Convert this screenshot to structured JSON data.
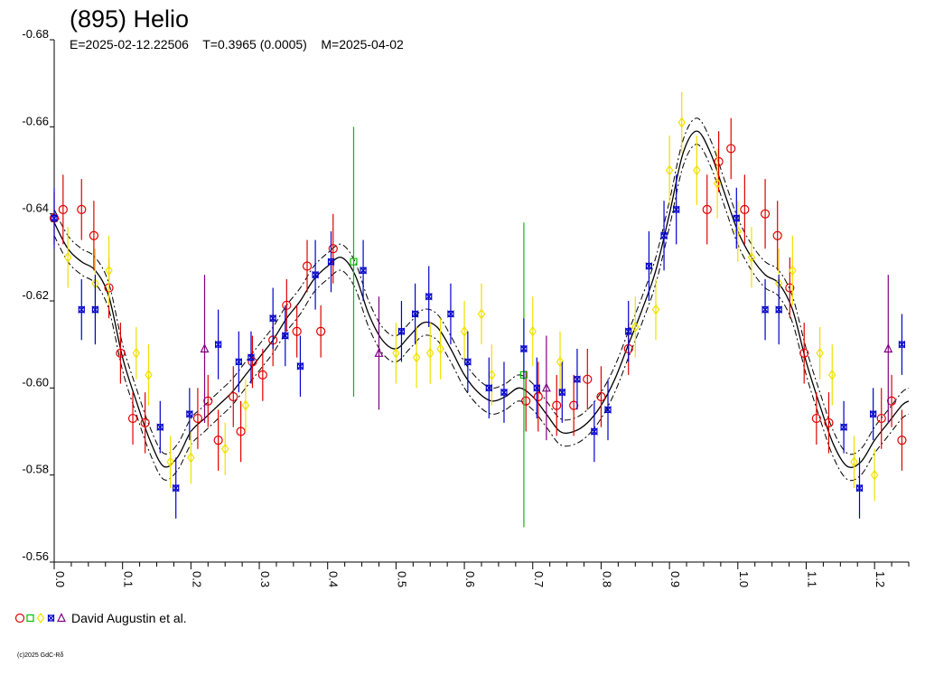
{
  "chart_data": {
    "type": "scatter",
    "title": "(895) Helio",
    "subtitle": "E=2025-02-12.22506    T=0.3965 (0.0005)    M=2025-04-02",
    "legend_label": "David Augustin et al.",
    "copyright": "(c)2025 GdC-Rδ",
    "xlim": [
      0.0,
      1.25
    ],
    "ylim": [
      -0.68,
      -0.56
    ],
    "y_ticks": [
      "-0.68",
      "-0.66",
      "-0.64",
      "-0.62",
      "-0.60",
      "-0.58",
      "-0.56"
    ],
    "y_tick_values": [
      -0.68,
      -0.66,
      -0.64,
      -0.62,
      -0.6,
      -0.58,
      -0.56
    ],
    "x_ticks": [
      "0.0",
      "0.1",
      "0.2",
      "0.3",
      "0.4",
      "0.5",
      "0.6",
      "0.7",
      "0.8",
      "0.9",
      "1.0",
      "1.1",
      "1.2"
    ],
    "x_tick_values": [
      0.0,
      0.1,
      0.2,
      0.3,
      0.4,
      0.5,
      0.6,
      0.7,
      0.8,
      0.9,
      1.0,
      1.1,
      1.2
    ],
    "model_curve": {
      "x": [
        0.0,
        0.02,
        0.04,
        0.06,
        0.08,
        0.1,
        0.12,
        0.14,
        0.16,
        0.18,
        0.2,
        0.22,
        0.24,
        0.26,
        0.28,
        0.3,
        0.32,
        0.34,
        0.36,
        0.38,
        0.4,
        0.42,
        0.44,
        0.46,
        0.48,
        0.5,
        0.52,
        0.54,
        0.56,
        0.58,
        0.6,
        0.62,
        0.64,
        0.66,
        0.68,
        0.7,
        0.72,
        0.74,
        0.76,
        0.78,
        0.8,
        0.82,
        0.84,
        0.86,
        0.88,
        0.9,
        0.92,
        0.94,
        0.96,
        0.98,
        1.0,
        1.02,
        1.04,
        1.06,
        1.08,
        1.1,
        1.12,
        1.14,
        1.16,
        1.18,
        1.2,
        1.22,
        1.24,
        1.25
      ],
      "y": [
        -0.638,
        -0.632,
        -0.629,
        -0.627,
        -0.621,
        -0.607,
        -0.597,
        -0.588,
        -0.582,
        -0.584,
        -0.59,
        -0.593,
        -0.596,
        -0.599,
        -0.603,
        -0.607,
        -0.611,
        -0.616,
        -0.62,
        -0.625,
        -0.628,
        -0.63,
        -0.626,
        -0.617,
        -0.611,
        -0.609,
        -0.612,
        -0.615,
        -0.614,
        -0.609,
        -0.603,
        -0.599,
        -0.597,
        -0.598,
        -0.6,
        -0.598,
        -0.594,
        -0.59,
        -0.59,
        -0.592,
        -0.596,
        -0.602,
        -0.61,
        -0.618,
        -0.627,
        -0.64,
        -0.654,
        -0.659,
        -0.654,
        -0.645,
        -0.636,
        -0.63,
        -0.626,
        -0.624,
        -0.618,
        -0.606,
        -0.596,
        -0.587,
        -0.582,
        -0.583,
        -0.588,
        -0.592,
        -0.596,
        -0.597
      ],
      "band": 0.003
    },
    "series": [
      {
        "marker": "circle",
        "color": "#e00000",
        "points": [
          [
            0.0,
            -0.639,
            0.006
          ],
          [
            0.013,
            -0.641,
            0.008
          ],
          [
            0.04,
            -0.641,
            0.007
          ],
          [
            0.058,
            -0.635,
            0.008
          ],
          [
            0.08,
            -0.623,
            0.007
          ],
          [
            0.097,
            -0.608,
            0.007
          ],
          [
            0.115,
            -0.593,
            0.006
          ],
          [
            0.133,
            -0.592,
            0.007
          ],
          [
            0.21,
            -0.593,
            0.007
          ],
          [
            0.225,
            -0.597,
            0.006
          ],
          [
            0.24,
            -0.588,
            0.007
          ],
          [
            0.262,
            -0.598,
            0.007
          ],
          [
            0.273,
            -0.59,
            0.007
          ],
          [
            0.29,
            -0.606,
            0.006
          ],
          [
            0.305,
            -0.603,
            0.006
          ],
          [
            0.32,
            -0.611,
            0.006
          ],
          [
            0.34,
            -0.619,
            0.006
          ],
          [
            0.355,
            -0.613,
            0.006
          ],
          [
            0.37,
            -0.628,
            0.006
          ],
          [
            0.39,
            -0.613,
            0.006
          ],
          [
            0.408,
            -0.632,
            0.008
          ],
          [
            0.69,
            -0.597,
            0.007
          ],
          [
            0.708,
            -0.598,
            0.008
          ],
          [
            0.735,
            -0.596,
            0.007
          ],
          [
            0.76,
            -0.596,
            0.007
          ],
          [
            0.78,
            -0.602,
            0.007
          ],
          [
            0.8,
            -0.598,
            0.007
          ],
          [
            0.84,
            -0.609,
            0.006
          ],
          [
            0.955,
            -0.641,
            0.008
          ],
          [
            0.972,
            -0.652,
            0.007
          ],
          [
            0.99,
            -0.655,
            0.007
          ],
          [
            1.01,
            -0.641,
            0.008
          ],
          [
            1.04,
            -0.64,
            0.008
          ],
          [
            1.058,
            -0.635,
            0.008
          ],
          [
            1.076,
            -0.623,
            0.007
          ],
          [
            1.097,
            -0.608,
            0.007
          ],
          [
            1.115,
            -0.593,
            0.006
          ],
          [
            1.133,
            -0.592,
            0.007
          ],
          [
            1.21,
            -0.593,
            0.007
          ],
          [
            1.225,
            -0.597,
            0.006
          ],
          [
            1.24,
            -0.588,
            0.007
          ]
        ]
      },
      {
        "marker": "square",
        "color": "#00c000",
        "points": [
          [
            0.438,
            -0.629,
            0.031
          ],
          [
            0.687,
            -0.603,
            0.035
          ]
        ]
      },
      {
        "marker": "diamond",
        "color": "#f0e000",
        "points": [
          [
            0.02,
            -0.63,
            0.007
          ],
          [
            0.06,
            -0.624,
            0.008
          ],
          [
            0.08,
            -0.627,
            0.008
          ],
          [
            0.12,
            -0.608,
            0.006
          ],
          [
            0.138,
            -0.603,
            0.007
          ],
          [
            0.17,
            -0.583,
            0.006
          ],
          [
            0.2,
            -0.584,
            0.006
          ],
          [
            0.25,
            -0.586,
            0.006
          ],
          [
            0.28,
            -0.596,
            0.006
          ],
          [
            0.5,
            -0.608,
            0.007
          ],
          [
            0.53,
            -0.607,
            0.007
          ],
          [
            0.55,
            -0.608,
            0.007
          ],
          [
            0.565,
            -0.609,
            0.007
          ],
          [
            0.6,
            -0.613,
            0.007
          ],
          [
            0.625,
            -0.617,
            0.007
          ],
          [
            0.64,
            -0.603,
            0.007
          ],
          [
            0.7,
            -0.613,
            0.008
          ],
          [
            0.74,
            -0.606,
            0.007
          ],
          [
            0.85,
            -0.614,
            0.007
          ],
          [
            0.88,
            -0.618,
            0.007
          ],
          [
            0.9,
            -0.65,
            0.008
          ],
          [
            0.918,
            -0.661,
            0.007
          ],
          [
            0.94,
            -0.65,
            0.008
          ],
          [
            0.97,
            -0.647,
            0.008
          ],
          [
            1.0,
            -0.636,
            0.007
          ],
          [
            1.02,
            -0.63,
            0.007
          ],
          [
            1.06,
            -0.624,
            0.008
          ],
          [
            1.08,
            -0.627,
            0.008
          ],
          [
            1.12,
            -0.608,
            0.006
          ],
          [
            1.138,
            -0.603,
            0.007
          ],
          [
            1.17,
            -0.583,
            0.006
          ],
          [
            1.2,
            -0.58,
            0.006
          ]
        ]
      },
      {
        "marker": "star",
        "color": "#0000cc",
        "points": [
          [
            0.0,
            -0.639,
            0.007
          ],
          [
            0.04,
            -0.618,
            0.007
          ],
          [
            0.06,
            -0.618,
            0.008
          ],
          [
            0.155,
            -0.591,
            0.006
          ],
          [
            0.178,
            -0.577,
            0.007
          ],
          [
            0.198,
            -0.594,
            0.006
          ],
          [
            0.24,
            -0.61,
            0.008
          ],
          [
            0.27,
            -0.606,
            0.007
          ],
          [
            0.288,
            -0.607,
            0.006
          ],
          [
            0.32,
            -0.616,
            0.007
          ],
          [
            0.338,
            -0.612,
            0.007
          ],
          [
            0.36,
            -0.605,
            0.007
          ],
          [
            0.382,
            -0.626,
            0.008
          ],
          [
            0.405,
            -0.629,
            0.007
          ],
          [
            0.452,
            -0.627,
            0.007
          ],
          [
            0.508,
            -0.613,
            0.007
          ],
          [
            0.528,
            -0.617,
            0.007
          ],
          [
            0.548,
            -0.621,
            0.007
          ],
          [
            0.58,
            -0.617,
            0.007
          ],
          [
            0.605,
            -0.606,
            0.007
          ],
          [
            0.636,
            -0.6,
            0.007
          ],
          [
            0.658,
            -0.599,
            0.007
          ],
          [
            0.687,
            -0.609,
            0.007
          ],
          [
            0.706,
            -0.6,
            0.007
          ],
          [
            0.743,
            -0.599,
            0.007
          ],
          [
            0.765,
            -0.602,
            0.007
          ],
          [
            0.79,
            -0.59,
            0.007
          ],
          [
            0.81,
            -0.595,
            0.007
          ],
          [
            0.84,
            -0.613,
            0.007
          ],
          [
            0.87,
            -0.628,
            0.008
          ],
          [
            0.892,
            -0.635,
            0.008
          ],
          [
            0.91,
            -0.641,
            0.008
          ],
          [
            0.998,
            -0.639,
            0.007
          ],
          [
            1.04,
            -0.618,
            0.007
          ],
          [
            1.06,
            -0.618,
            0.008
          ],
          [
            1.155,
            -0.591,
            0.006
          ],
          [
            1.178,
            -0.577,
            0.007
          ],
          [
            1.198,
            -0.594,
            0.006
          ],
          [
            1.24,
            -0.61,
            0.007
          ]
        ]
      },
      {
        "marker": "triangle",
        "color": "#800080",
        "points": [
          [
            0.22,
            -0.609,
            0.017
          ],
          [
            0.475,
            -0.608,
            0.013
          ],
          [
            0.72,
            -0.6,
            0.012
          ],
          [
            1.22,
            -0.609,
            0.017
          ]
        ]
      }
    ]
  }
}
